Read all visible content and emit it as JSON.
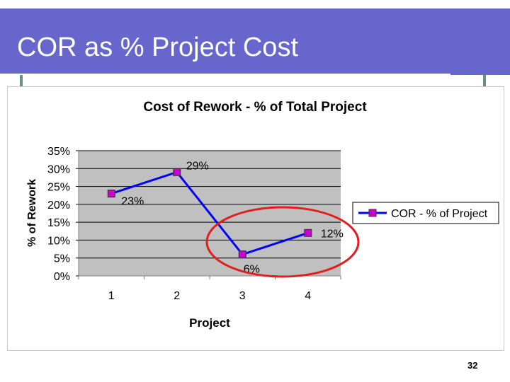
{
  "slide": {
    "title": "COR as % Project Cost",
    "page_number": "32"
  },
  "colors": {
    "header_bg": "#6666cc",
    "line": "#0000ff",
    "marker": "#cc00cc",
    "highlight_ellipse": "#e02020",
    "plot_bg": "#c0c0c0"
  },
  "chart_data": {
    "type": "line",
    "title": "Cost of Rework - % of Total Project",
    "xlabel": "Project",
    "ylabel": "% of Rework",
    "categories": [
      "1",
      "2",
      "3",
      "4"
    ],
    "series": [
      {
        "name": "COR - % of Project",
        "values": [
          23,
          29,
          6,
          12
        ]
      }
    ],
    "data_labels": [
      "23%",
      "29%",
      "6%",
      "12%"
    ],
    "y_ticks": [
      "0%",
      "5%",
      "10%",
      "15%",
      "20%",
      "25%",
      "30%",
      "35%"
    ],
    "ylim": [
      0,
      35
    ],
    "grid": true,
    "legend": "right",
    "annotation": "red ellipse highlighting projects 3 and 4"
  }
}
